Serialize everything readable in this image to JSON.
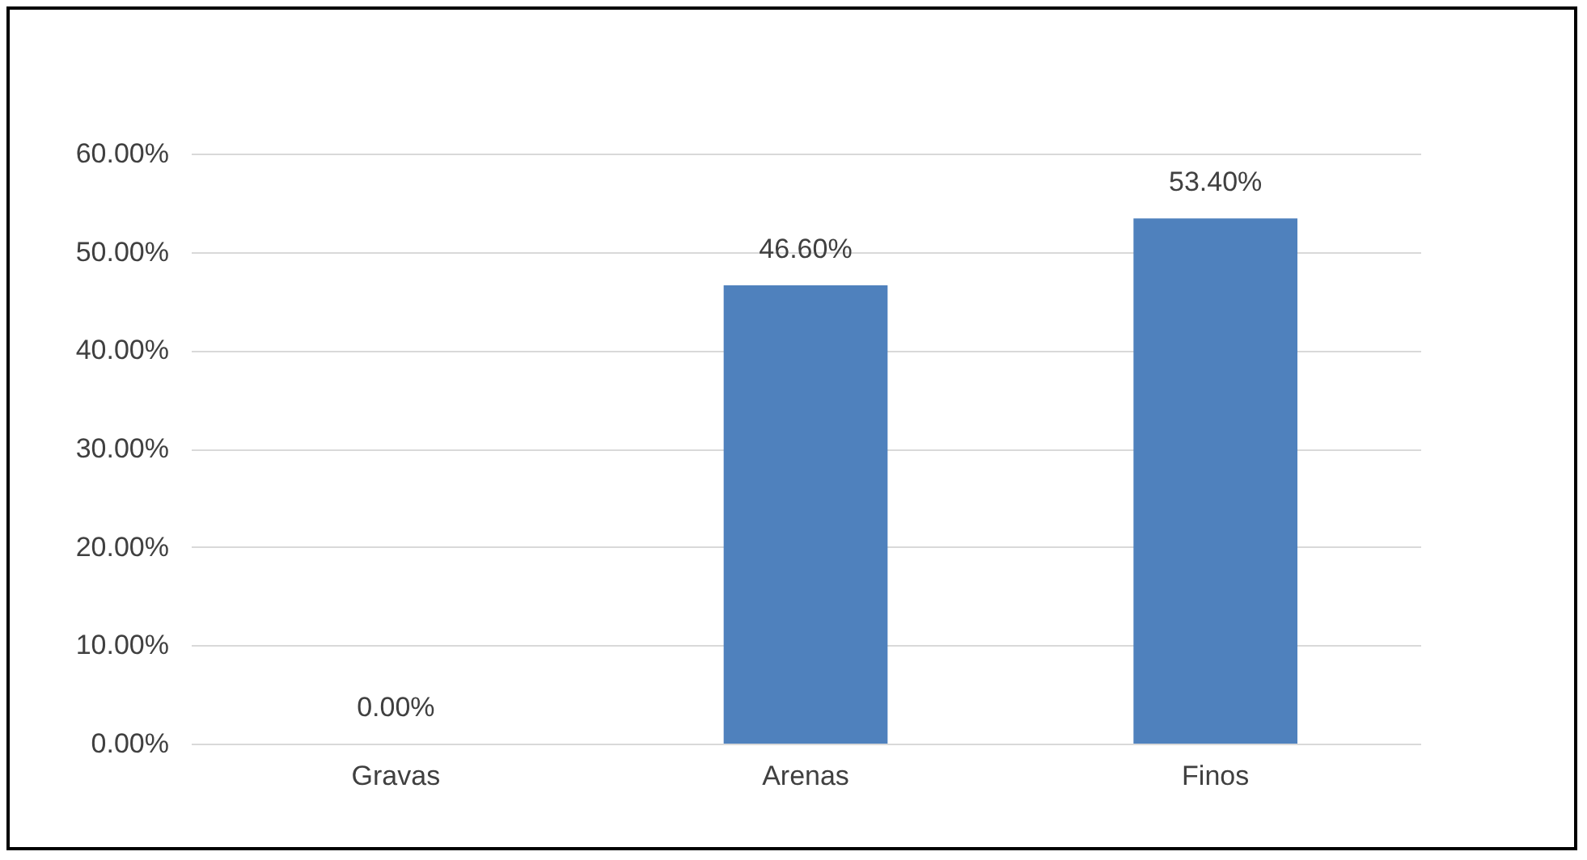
{
  "chart_data": {
    "type": "bar",
    "categories": [
      "Gravas",
      "Arenas",
      "Finos"
    ],
    "values": [
      0,
      46.6,
      53.4
    ],
    "value_labels": [
      "0.00%",
      "46.60%",
      "53.40%"
    ],
    "color": "#4f81bd",
    "ylim": [
      0,
      60
    ],
    "yticks": [
      {
        "value": 0,
        "label": "0.00%"
      },
      {
        "value": 10,
        "label": "10.00%"
      },
      {
        "value": 20,
        "label": "20.00%"
      },
      {
        "value": 30,
        "label": "30.00%"
      },
      {
        "value": 40,
        "label": "40.00%"
      },
      {
        "value": 50,
        "label": "50.00%"
      },
      {
        "value": 60,
        "label": "60.00%"
      }
    ],
    "grid": "y"
  }
}
